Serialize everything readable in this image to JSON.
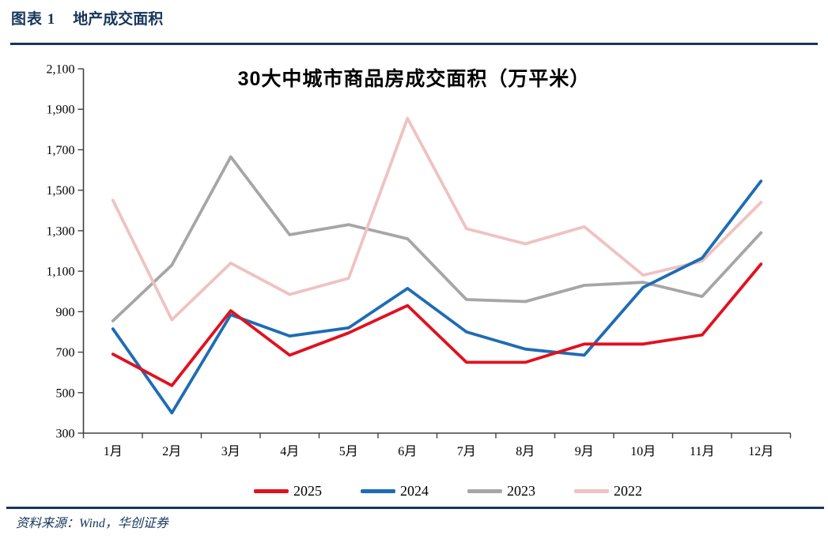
{
  "header": {
    "label": "图表 1",
    "title": "地产成交面积"
  },
  "footer": {
    "source": "资料来源：Wind，华创证券"
  },
  "colors": {
    "accent_navy": "#17365D",
    "axis": "#404040",
    "title_text": "#000000"
  },
  "chart_data": {
    "type": "line",
    "title": "30大中城市商品房成交面积（万平米）",
    "xlabel": "",
    "ylabel": "",
    "categories": [
      "1月",
      "2月",
      "3月",
      "4月",
      "5月",
      "6月",
      "7月",
      "8月",
      "9月",
      "10月",
      "11月",
      "12月"
    ],
    "series": [
      {
        "name": "2025",
        "color": "#E01120",
        "values": [
          690,
          535,
          905,
          685,
          795,
          930,
          650,
          650,
          740,
          740,
          785,
          1135
        ]
      },
      {
        "name": "2024",
        "color": "#1E6CB5",
        "values": [
          815,
          400,
          885,
          780,
          820,
          1015,
          800,
          715,
          685,
          1020,
          1165,
          1545
        ]
      },
      {
        "name": "2023",
        "color": "#A6A6A6",
        "values": [
          855,
          1130,
          1665,
          1280,
          1330,
          1260,
          960,
          950,
          1030,
          1045,
          975,
          1290
        ]
      },
      {
        "name": "2022",
        "color": "#EFC2C2",
        "values": [
          1450,
          860,
          1140,
          985,
          1065,
          1855,
          1310,
          1235,
          1320,
          1080,
          1150,
          1440
        ]
      }
    ],
    "ylim": [
      300,
      2100
    ],
    "ytick_step": 200,
    "ytick_labels": [
      "300",
      "500",
      "700",
      "900",
      "1,100",
      "1,300",
      "1,500",
      "1,700",
      "1,900",
      "2,100"
    ],
    "grid": false,
    "legend_position": "bottom",
    "draw_order": [
      "2023",
      "2022",
      "2024",
      "2025"
    ]
  }
}
